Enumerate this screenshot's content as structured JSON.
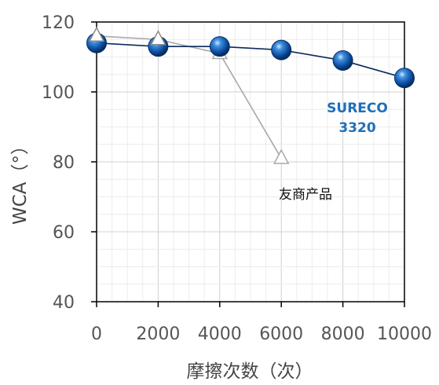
{
  "chart_data": {
    "type": "line",
    "x": [
      0,
      2000,
      4000,
      6000,
      8000,
      10000
    ],
    "x_ticks": [
      "0",
      "2000",
      "4000",
      "6000",
      "8000",
      "10000"
    ],
    "y_ticks": [
      "40",
      "60",
      "80",
      "100",
      "120"
    ],
    "xlim": [
      0,
      10000
    ],
    "ylim": [
      40,
      120
    ],
    "xlabel": "摩擦次数（次）",
    "ylabel": "WCA（°）",
    "grid": true,
    "series": [
      {
        "name": "SURECO 3320",
        "label_lines": [
          "SURECO",
          "3320"
        ],
        "marker": "sphere",
        "color": "#0b2a5e",
        "x": [
          0,
          2000,
          4000,
          6000,
          8000,
          10000
        ],
        "values": [
          114,
          113,
          113,
          112,
          109,
          104
        ]
      },
      {
        "name": "友商产品",
        "label_lines": [
          "友商产品"
        ],
        "marker": "triangle",
        "color": "#a8a8a8",
        "x": [
          0,
          2000,
          4000,
          6000
        ],
        "values": [
          116,
          115,
          111,
          81
        ]
      }
    ]
  }
}
